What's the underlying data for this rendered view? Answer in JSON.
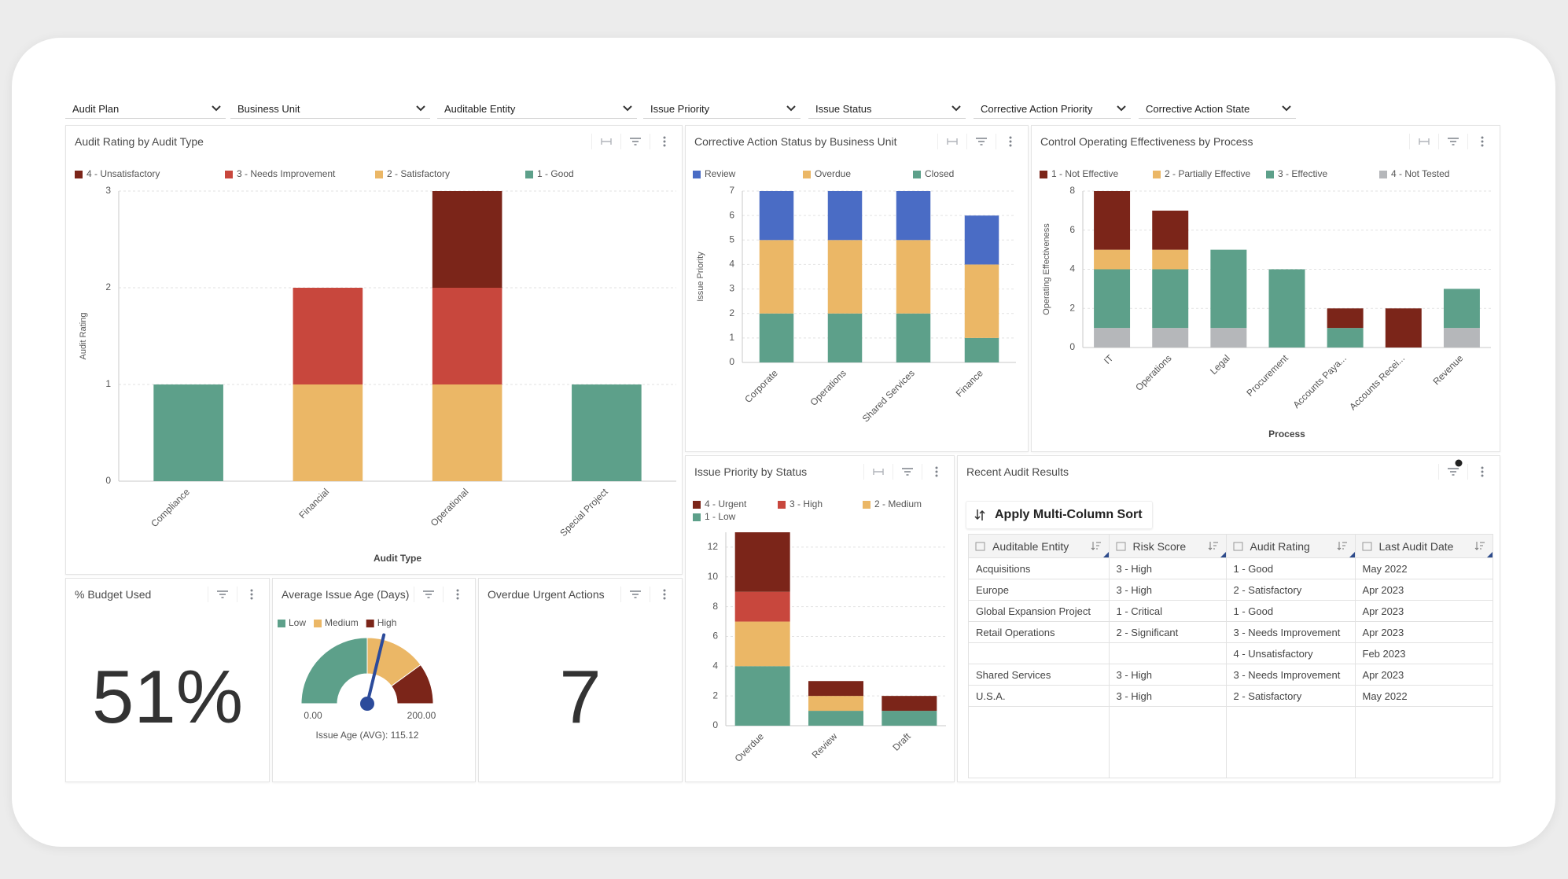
{
  "filters": [
    "Audit Plan",
    "Business Unit",
    "Auditable Entity",
    "Issue Priority",
    "Issue Status",
    "Corrective Action Priority",
    "Corrective Action State"
  ],
  "chart_data": [
    {
      "type": "bar",
      "stacked": true,
      "grid": true,
      "title": "Audit Rating by Audit Type",
      "x_label": "Audit Type",
      "y_label": "Audit Rating",
      "categories": [
        "Compliance",
        "Financial",
        "Operational",
        "Special Project"
      ],
      "series": [
        {
          "name": "4 - Unsatisfactory",
          "color": "#7b2519",
          "values": [
            0,
            0,
            1,
            0
          ]
        },
        {
          "name": "3 - Needs Improvement",
          "color": "#c8473d",
          "values": [
            0,
            1,
            1,
            0
          ]
        },
        {
          "name": "2 - Satisfactory",
          "color": "#ebb766",
          "values": [
            0,
            1,
            1,
            0
          ]
        },
        {
          "name": "1 - Good",
          "color": "#5da08a",
          "values": [
            1,
            0,
            0,
            1
          ]
        }
      ],
      "ylim": [
        0,
        3
      ],
      "yticks": [
        0,
        1,
        2,
        3
      ]
    },
    {
      "type": "bar",
      "stacked": true,
      "grid": true,
      "title": "Corrective Action Status by Business Unit",
      "y_label": "Issue Priority",
      "categories": [
        "Corporate",
        "Operations",
        "Shared Services",
        "Finance"
      ],
      "series": [
        {
          "name": "Review",
          "color": "#4a6cc5",
          "values": [
            2,
            2,
            2,
            2
          ]
        },
        {
          "name": "Overdue",
          "color": "#ebb766",
          "values": [
            3,
            3,
            3,
            3
          ]
        },
        {
          "name": "Closed",
          "color": "#5da08a",
          "values": [
            2,
            2,
            2,
            1
          ]
        }
      ],
      "ylim": [
        0,
        7
      ],
      "yticks": [
        0,
        1,
        2,
        3,
        4,
        5,
        6,
        7
      ]
    },
    {
      "type": "bar",
      "stacked": true,
      "grid": true,
      "title": "Control Operating Effectiveness by Process",
      "x_label": "Process",
      "y_label": "Operating Effectiveness",
      "categories": [
        "IT",
        "Operations",
        "Legal",
        "Procurement",
        "Accounts Paya...",
        "Accounts Recei...",
        "Revenue"
      ],
      "series": [
        {
          "name": "1 - Not Effective",
          "color": "#7b2519",
          "values": [
            3,
            2,
            0,
            0,
            1,
            2,
            0
          ]
        },
        {
          "name": "2 - Partially Effective",
          "color": "#ebb766",
          "values": [
            1,
            1,
            0,
            0,
            0,
            0,
            0
          ]
        },
        {
          "name": "3 - Effective",
          "color": "#5da08a",
          "values": [
            3,
            3,
            4,
            4,
            1,
            0,
            2
          ]
        },
        {
          "name": "4 - Not Tested",
          "color": "#b5b7ba",
          "values": [
            1,
            1,
            1,
            0,
            0,
            0,
            1
          ]
        }
      ],
      "ylim": [
        0,
        8
      ],
      "yticks": [
        0,
        2,
        4,
        6,
        8
      ]
    },
    {
      "type": "bar",
      "stacked": true,
      "grid": true,
      "title": "Issue Priority by Status",
      "categories": [
        "Overdue",
        "Review",
        "Draft"
      ],
      "series": [
        {
          "name": "4 - Urgent",
          "color": "#7b2519",
          "values": [
            4,
            1,
            1
          ]
        },
        {
          "name": "3 - High",
          "color": "#c8473d",
          "values": [
            2,
            0,
            0
          ]
        },
        {
          "name": "2 - Medium",
          "color": "#ebb766",
          "values": [
            3,
            1,
            0
          ]
        },
        {
          "name": "1 - Low",
          "color": "#5da08a",
          "values": [
            4,
            1,
            1
          ]
        }
      ],
      "ylim": [
        0,
        13
      ],
      "yticks": [
        0,
        2,
        4,
        6,
        8,
        10,
        12
      ]
    },
    {
      "type": "gauge",
      "title": "Average Issue Age (Days)",
      "bands": [
        {
          "name": "Low",
          "color": "#5da08a",
          "to": 100
        },
        {
          "name": "Medium",
          "color": "#ebb766",
          "to": 160
        },
        {
          "name": "High",
          "color": "#7b2519",
          "to": 200
        }
      ],
      "range": [
        {
          "value": 0,
          "label": "0.00"
        },
        {
          "value": 200,
          "label": "200.00"
        }
      ],
      "value": 115.12,
      "value_label": "Issue Age (AVG): 115.12"
    }
  ],
  "kpis": [
    {
      "title": "% Budget Used",
      "value": 51,
      "value_label": "51%"
    },
    {
      "title": "Overdue Urgent Actions",
      "value": 7
    }
  ],
  "table": {
    "title": "Recent Audit Results",
    "button": "Apply Multi-Column Sort",
    "columns": [
      "Auditable Entity",
      "Risk Score",
      "Audit Rating",
      "Last Audit Date"
    ],
    "rows": [
      [
        "Acquisitions",
        "3 - High",
        "1 - Good",
        "May 2022"
      ],
      [
        "Europe",
        "3 - High",
        "2 - Satisfactory",
        "Apr 2023"
      ],
      [
        "Global Expansion Project",
        "1 - Critical",
        "1 - Good",
        "Apr 2023"
      ],
      [
        "Retail Operations",
        "2 - Significant",
        "3 - Needs Improvement",
        "Apr 2023"
      ],
      [
        null,
        null,
        "4 - Unsatisfactory",
        "Feb 2023"
      ],
      [
        "Shared Services",
        "3 - High",
        "3 - Needs Improvement",
        "Apr 2023"
      ],
      [
        "U.S.A.",
        "3 - High",
        "2 - Satisfactory",
        "May 2022"
      ]
    ]
  }
}
